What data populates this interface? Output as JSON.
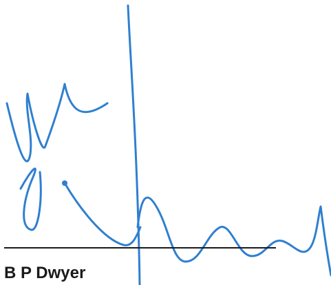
{
  "document": {
    "signer_name": "B P Dwyer"
  },
  "colors": {
    "ink": "#2f7fd0",
    "line": "#1a1a1a",
    "text": "#1a1a1a",
    "background": "#ffffff"
  }
}
